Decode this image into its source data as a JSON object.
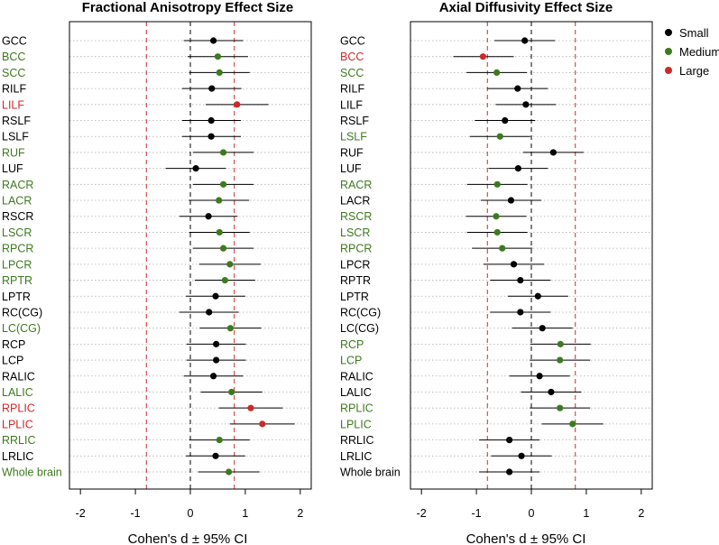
{
  "colors": {
    "Small": "#000000",
    "Medium": "#3d7a1e",
    "Large": "#cc2a2a",
    "large_threshold": "#cc2a2a",
    "zero": "#000000",
    "grid": "#b0b0b0"
  },
  "legend": {
    "entries": [
      "Small",
      "Medium",
      "Large"
    ]
  },
  "chart_data": [
    {
      "type": "scatter",
      "title": "Fractional Anisotropy Effect Size",
      "xlabel": "Cohen's d ± 95% CI",
      "xlim": [
        -2.2,
        2.2
      ],
      "xticks": [
        -2,
        -1,
        0,
        1,
        2
      ],
      "xtick_labels": [
        "-2",
        "-1",
        "0",
        "1",
        "2"
      ],
      "thresholds": [
        -0.8,
        0.8
      ],
      "rows": [
        {
          "label": "GCC",
          "d": 0.42,
          "lo": -0.12,
          "hi": 0.96,
          "size": "Small"
        },
        {
          "label": "BCC",
          "d": 0.5,
          "lo": -0.05,
          "hi": 1.05,
          "size": "Medium"
        },
        {
          "label": "SCC",
          "d": 0.53,
          "lo": -0.02,
          "hi": 1.08,
          "size": "Medium"
        },
        {
          "label": "RILF",
          "d": 0.39,
          "lo": -0.15,
          "hi": 0.93,
          "size": "Small"
        },
        {
          "label": "LILF",
          "d": 0.85,
          "lo": 0.28,
          "hi": 1.42,
          "size": "Large"
        },
        {
          "label": "RSLF",
          "d": 0.38,
          "lo": -0.15,
          "hi": 0.92,
          "size": "Small"
        },
        {
          "label": "LSLF",
          "d": 0.38,
          "lo": -0.15,
          "hi": 0.92,
          "size": "Small"
        },
        {
          "label": "RUF",
          "d": 0.6,
          "lo": 0.05,
          "hi": 1.15,
          "size": "Medium"
        },
        {
          "label": "LUF",
          "d": 0.1,
          "lo": -0.45,
          "hi": 0.65,
          "size": "Small"
        },
        {
          "label": "RACR",
          "d": 0.6,
          "lo": 0.05,
          "hi": 1.15,
          "size": "Medium"
        },
        {
          "label": "LACR",
          "d": 0.52,
          "lo": -0.03,
          "hi": 1.07,
          "size": "Medium"
        },
        {
          "label": "RSCR",
          "d": 0.33,
          "lo": -0.2,
          "hi": 0.86,
          "size": "Small"
        },
        {
          "label": "LSCR",
          "d": 0.53,
          "lo": -0.02,
          "hi": 1.08,
          "size": "Medium"
        },
        {
          "label": "RPCR",
          "d": 0.6,
          "lo": 0.05,
          "hi": 1.15,
          "size": "Medium"
        },
        {
          "label": "LPCR",
          "d": 0.72,
          "lo": 0.16,
          "hi": 1.28,
          "size": "Medium"
        },
        {
          "label": "RPTR",
          "d": 0.63,
          "lo": 0.08,
          "hi": 1.18,
          "size": "Medium"
        },
        {
          "label": "LPTR",
          "d": 0.46,
          "lo": -0.08,
          "hi": 1.0,
          "size": "Small"
        },
        {
          "label": "RC(CG)",
          "d": 0.34,
          "lo": -0.2,
          "hi": 0.88,
          "size": "Small"
        },
        {
          "label": "LC(CG)",
          "d": 0.73,
          "lo": 0.17,
          "hi": 1.29,
          "size": "Medium"
        },
        {
          "label": "RCP",
          "d": 0.47,
          "lo": -0.07,
          "hi": 1.01,
          "size": "Small"
        },
        {
          "label": "LCP",
          "d": 0.47,
          "lo": -0.07,
          "hi": 1.01,
          "size": "Small"
        },
        {
          "label": "RALIC",
          "d": 0.42,
          "lo": -0.12,
          "hi": 0.96,
          "size": "Small"
        },
        {
          "label": "LALIC",
          "d": 0.75,
          "lo": 0.19,
          "hi": 1.31,
          "size": "Medium"
        },
        {
          "label": "RPLIC",
          "d": 1.1,
          "lo": 0.52,
          "hi": 1.68,
          "size": "Large"
        },
        {
          "label": "LPLIC",
          "d": 1.31,
          "lo": 0.72,
          "hi": 1.9,
          "size": "Large"
        },
        {
          "label": "RRLIC",
          "d": 0.53,
          "lo": -0.02,
          "hi": 1.08,
          "size": "Medium"
        },
        {
          "label": "LRLIC",
          "d": 0.46,
          "lo": -0.08,
          "hi": 1.0,
          "size": "Small"
        },
        {
          "label": "Whole brain",
          "d": 0.7,
          "lo": 0.14,
          "hi": 1.26,
          "size": "Medium"
        }
      ]
    },
    {
      "type": "scatter",
      "title": "Axial Diffusivity Effect Size",
      "xlabel": "Cohen's d ± 95% CI",
      "xlim": [
        -2.2,
        2.2
      ],
      "xticks": [
        -2,
        -1,
        0,
        1,
        2
      ],
      "xtick_labels": [
        "-2",
        "-1",
        "0",
        "1",
        "2"
      ],
      "thresholds": [
        -0.8,
        0.8
      ],
      "rows": [
        {
          "label": "GCC",
          "d": -0.12,
          "lo": -0.67,
          "hi": 0.43,
          "size": "Small"
        },
        {
          "label": "BCC",
          "d": -0.88,
          "lo": -1.42,
          "hi": -0.32,
          "size": "Large"
        },
        {
          "label": "SCC",
          "d": -0.63,
          "lo": -1.18,
          "hi": -0.08,
          "size": "Medium"
        },
        {
          "label": "RILF",
          "d": -0.25,
          "lo": -0.8,
          "hi": 0.3,
          "size": "Small"
        },
        {
          "label": "LILF",
          "d": -0.1,
          "lo": -0.65,
          "hi": 0.45,
          "size": "Small"
        },
        {
          "label": "RSLF",
          "d": -0.48,
          "lo": -1.03,
          "hi": 0.07,
          "size": "Small"
        },
        {
          "label": "LSLF",
          "d": -0.57,
          "lo": -1.12,
          "hi": -0.02,
          "size": "Medium"
        },
        {
          "label": "RUF",
          "d": 0.4,
          "lo": -0.15,
          "hi": 0.95,
          "size": "Small"
        },
        {
          "label": "LUF",
          "d": -0.24,
          "lo": -0.78,
          "hi": 0.3,
          "size": "Small"
        },
        {
          "label": "RACR",
          "d": -0.62,
          "lo": -1.17,
          "hi": -0.07,
          "size": "Medium"
        },
        {
          "label": "LACR",
          "d": -0.37,
          "lo": -0.92,
          "hi": 0.18,
          "size": "Small"
        },
        {
          "label": "RSCR",
          "d": -0.64,
          "lo": -1.19,
          "hi": -0.09,
          "size": "Medium"
        },
        {
          "label": "LSCR",
          "d": -0.62,
          "lo": -1.17,
          "hi": -0.07,
          "size": "Medium"
        },
        {
          "label": "RPCR",
          "d": -0.53,
          "lo": -1.08,
          "hi": 0.02,
          "size": "Medium"
        },
        {
          "label": "LPCR",
          "d": -0.32,
          "lo": -0.87,
          "hi": 0.23,
          "size": "Small"
        },
        {
          "label": "RPTR",
          "d": -0.2,
          "lo": -0.75,
          "hi": 0.35,
          "size": "Small"
        },
        {
          "label": "LPTR",
          "d": 0.12,
          "lo": -0.43,
          "hi": 0.67,
          "size": "Small"
        },
        {
          "label": "RC(CG)",
          "d": -0.2,
          "lo": -0.75,
          "hi": 0.35,
          "size": "Small"
        },
        {
          "label": "LC(CG)",
          "d": 0.2,
          "lo": -0.35,
          "hi": 0.75,
          "size": "Small"
        },
        {
          "label": "RCP",
          "d": 0.53,
          "lo": -0.02,
          "hi": 1.08,
          "size": "Medium"
        },
        {
          "label": "LCP",
          "d": 0.52,
          "lo": -0.03,
          "hi": 1.07,
          "size": "Medium"
        },
        {
          "label": "RALIC",
          "d": 0.15,
          "lo": -0.4,
          "hi": 0.7,
          "size": "Small"
        },
        {
          "label": "LALIC",
          "d": 0.36,
          "lo": -0.19,
          "hi": 0.91,
          "size": "Small"
        },
        {
          "label": "RPLIC",
          "d": 0.52,
          "lo": -0.03,
          "hi": 1.07,
          "size": "Medium"
        },
        {
          "label": "LPLIC",
          "d": 0.75,
          "lo": 0.19,
          "hi": 1.31,
          "size": "Medium"
        },
        {
          "label": "RRLIC",
          "d": -0.4,
          "lo": -0.95,
          "hi": 0.15,
          "size": "Small"
        },
        {
          "label": "LRLIC",
          "d": -0.18,
          "lo": -0.73,
          "hi": 0.37,
          "size": "Small"
        },
        {
          "label": "Whole brain",
          "d": -0.4,
          "lo": -0.95,
          "hi": 0.15,
          "size": "Small"
        }
      ]
    }
  ]
}
